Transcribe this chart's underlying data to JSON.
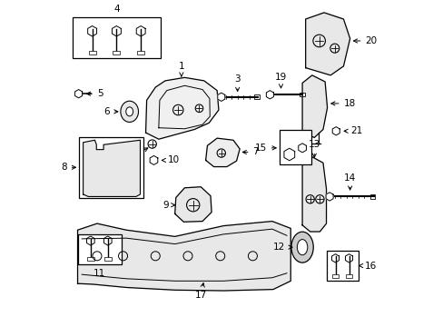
{
  "bg_color": "#ffffff",
  "border_color": "#000000",
  "line_color": "#000000",
  "label_color": "#000000",
  "figsize": [
    4.89,
    3.6
  ],
  "dpi": 100
}
